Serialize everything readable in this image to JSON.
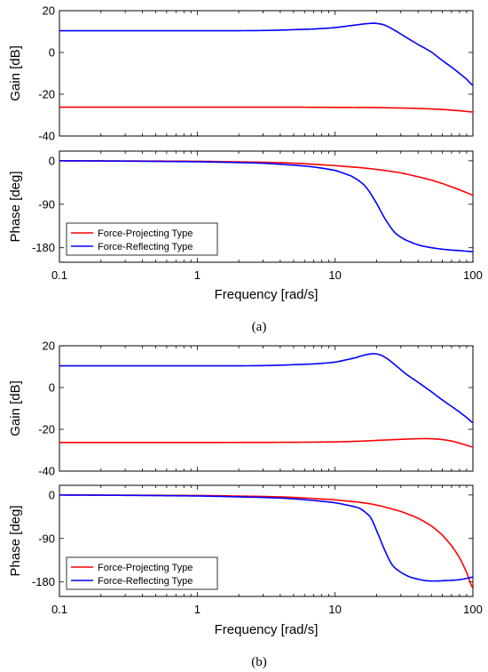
{
  "figure": {
    "captions": [
      "(a)",
      "(b)"
    ]
  },
  "chart_data": [
    {
      "id": "a",
      "type": "line",
      "caption": "(a)",
      "xlabel": "Frequency [rad/s]",
      "xscale": "log",
      "xlim": [
        0.1,
        100
      ],
      "xticks": [
        0.1,
        1,
        10,
        100
      ],
      "xtick_labels": [
        "0.1",
        "1",
        "10",
        "100"
      ],
      "legend_position": "bottom-left of phase panel",
      "colors": {
        "force_projecting": "#ff0000",
        "force_reflecting": "#0000ff"
      },
      "panels": [
        {
          "name": "gain",
          "ylabel": "Gain [dB]",
          "ylim": [
            -40,
            20
          ],
          "yticks": [
            20,
            0,
            -20,
            -40
          ],
          "ytick_labels": [
            "20",
            "0",
            "-20",
            "-40"
          ],
          "series": [
            {
              "name": "Force-Projecting Type",
              "color": "#ff0000",
              "x": [
                0.1,
                1,
                5,
                10,
                20,
                40,
                60,
                80,
                100
              ],
              "y": [
                -26.2,
                -26.2,
                -26.2,
                -26.3,
                -26.4,
                -26.8,
                -27.3,
                -27.9,
                -28.5
              ]
            },
            {
              "name": "Force-Reflecting Type",
              "color": "#0000ff",
              "x": [
                0.1,
                1,
                3,
                7,
                10,
                14,
                18,
                20,
                23,
                27,
                33,
                40,
                50,
                60,
                70,
                80,
                90,
                100
              ],
              "y": [
                10.4,
                10.4,
                10.5,
                11.2,
                11.9,
                13.1,
                13.9,
                13.9,
                13.0,
                10.6,
                7.1,
                3.8,
                0.2,
                -3.8,
                -7.0,
                -10.0,
                -12.8,
                -15.7
              ]
            }
          ]
        },
        {
          "name": "phase",
          "ylabel": "Phase [deg]",
          "ylim": [
            -210,
            20
          ],
          "yticks": [
            0,
            -90,
            -180
          ],
          "ytick_labels": [
            "0",
            "-90",
            "-180"
          ],
          "series": [
            {
              "name": "Force-Projecting Type",
              "color": "#ff0000",
              "x": [
                0.1,
                1,
                3,
                5,
                10,
                15,
                20,
                30,
                40,
                50,
                60,
                70,
                80,
                90,
                100
              ],
              "y": [
                0,
                -1,
                -3,
                -5,
                -10,
                -14,
                -18,
                -25,
                -33,
                -40,
                -47,
                -54,
                -60,
                -66,
                -71
              ]
            },
            {
              "name": "Force-Reflecting Type",
              "color": "#0000ff",
              "x": [
                0.1,
                1,
                3,
                5,
                7,
                10,
                13,
                15,
                17,
                20,
                23,
                27,
                32,
                40,
                50,
                65,
                80,
                100
              ],
              "y": [
                0,
                -2,
                -5,
                -9,
                -13,
                -20,
                -31,
                -42,
                -57,
                -88,
                -120,
                -148,
                -163,
                -174,
                -180,
                -184,
                -186,
                -188
              ]
            }
          ]
        }
      ]
    },
    {
      "id": "b",
      "type": "line",
      "caption": "(b)",
      "xlabel": "Frequency [rad/s]",
      "xscale": "log",
      "xlim": [
        0.1,
        100
      ],
      "xticks": [
        0.1,
        1,
        10,
        100
      ],
      "xtick_labels": [
        "0.1",
        "1",
        "10",
        "100"
      ],
      "legend_position": "bottom-left of phase panel",
      "colors": {
        "force_projecting": "#ff0000",
        "force_reflecting": "#0000ff"
      },
      "panels": [
        {
          "name": "gain",
          "ylabel": "Gain [dB]",
          "ylim": [
            -40,
            20
          ],
          "yticks": [
            20,
            0,
            -20,
            -40
          ],
          "ytick_labels": [
            "20",
            "0",
            "-20",
            "-40"
          ],
          "series": [
            {
              "name": "Force-Projecting Type",
              "color": "#ff0000",
              "x": [
                0.1,
                1,
                5,
                10,
                15,
                20,
                30,
                40,
                50,
                60,
                70,
                80,
                90,
                100
              ],
              "y": [
                -26.3,
                -26.3,
                -26.2,
                -26.0,
                -25.7,
                -25.3,
                -24.8,
                -24.5,
                -24.5,
                -24.9,
                -25.6,
                -26.6,
                -27.6,
                -28.5
              ]
            },
            {
              "name": "Force-Reflecting Type",
              "color": "#0000ff",
              "x": [
                0.1,
                1,
                3,
                7,
                10,
                14,
                17,
                20,
                23,
                27,
                33,
                40,
                50,
                60,
                70,
                80,
                90,
                100
              ],
              "y": [
                10.4,
                10.4,
                10.5,
                11.3,
                12.2,
                14.2,
                15.8,
                16.1,
                14.5,
                11.0,
                6.3,
                2.5,
                -2.0,
                -5.9,
                -9.0,
                -11.7,
                -14.3,
                -16.8
              ]
            }
          ]
        },
        {
          "name": "phase",
          "ylabel": "Phase [deg]",
          "ylim": [
            -210,
            20
          ],
          "yticks": [
            0,
            -90,
            -180
          ],
          "ytick_labels": [
            "0",
            "-90",
            "-180"
          ],
          "series": [
            {
              "name": "Force-Projecting Type",
              "color": "#ff0000",
              "x": [
                0.1,
                1,
                3,
                5,
                10,
                15,
                20,
                30,
                40,
                50,
                60,
                70,
                80,
                90,
                100
              ],
              "y": [
                0,
                -1,
                -3,
                -5,
                -10,
                -15,
                -21,
                -34,
                -48,
                -64,
                -83,
                -105,
                -130,
                -160,
                -193
              ]
            },
            {
              "name": "Force-Reflecting Type",
              "color": "#0000ff",
              "x": [
                0.1,
                1,
                3,
                5,
                10,
                15,
                18,
                20,
                23,
                26,
                30,
                35,
                45,
                55,
                65,
                75,
                85,
                100
              ],
              "y": [
                0,
                -2,
                -5,
                -8,
                -16,
                -27,
                -45,
                -74,
                -115,
                -145,
                -160,
                -170,
                -177,
                -178,
                -177,
                -176,
                -174,
                -170
              ]
            }
          ]
        }
      ]
    }
  ]
}
